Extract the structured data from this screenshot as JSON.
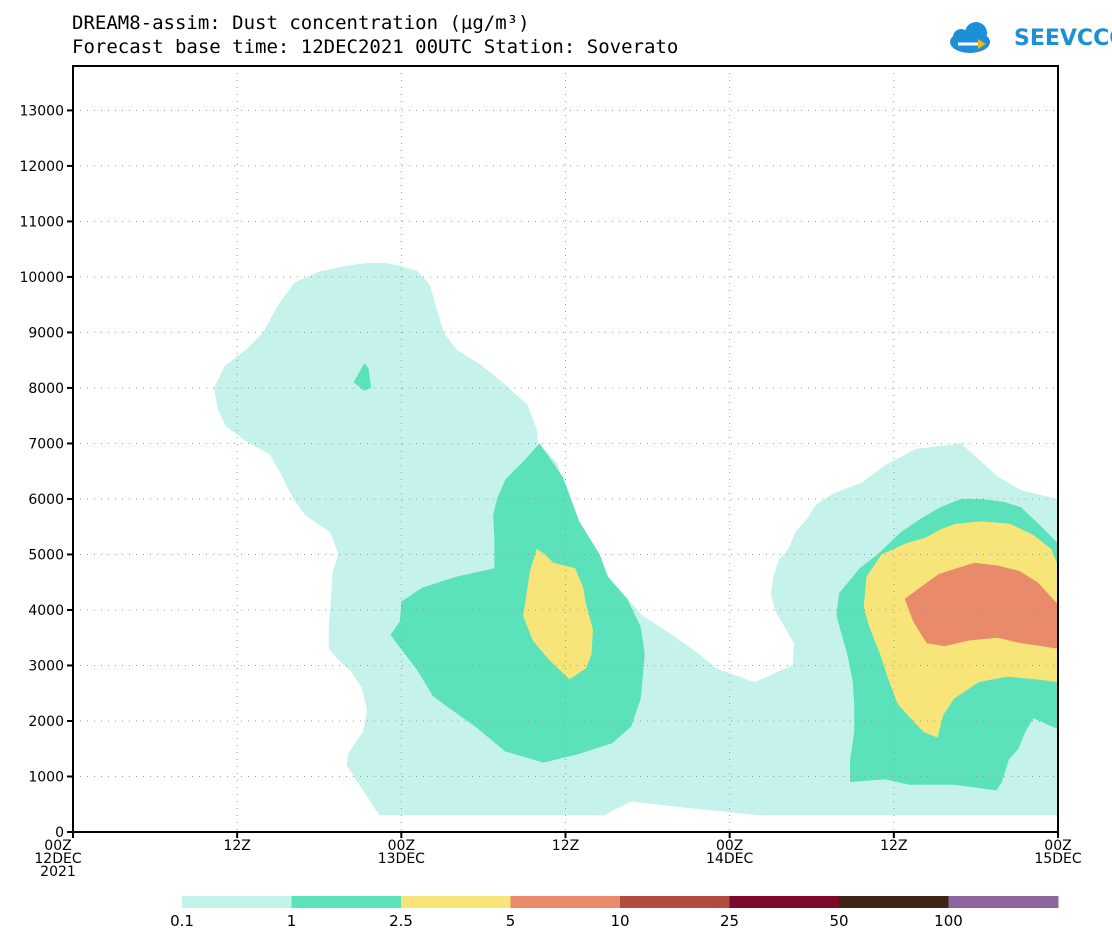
{
  "header": {
    "title_line1": "DREAM8-assim: Dust concentration (µg/m³)",
    "title_line2": "Forecast base time: 12DEC2021 00UTC  Station: Soverato",
    "logo_text": "SEEVCCC"
  },
  "colors": {
    "levels": [
      "#c5f2ea",
      "#5ce2bb",
      "#f7e57a",
      "#e98a6a",
      "#b24b40",
      "#7d0a2a",
      "#3e2415",
      "#9066a0"
    ],
    "logo": "#1c8fd6",
    "logo_arrow": "#f3b31b"
  },
  "chart_data": {
    "type": "heatmap",
    "title": "DREAM8-assim: Dust concentration (µg/m³)",
    "subtitle": "Forecast base time: 12DEC2021 00UTC  Station: Soverato",
    "x_unit": "hours since 12DEC2021 00Z",
    "xlim": [
      0,
      72
    ],
    "ylim": [
      0,
      13800
    ],
    "y_ticks": [
      0,
      1000,
      2000,
      3000,
      4000,
      5000,
      6000,
      7000,
      8000,
      9000,
      10000,
      11000,
      12000,
      13000
    ],
    "x_ticks": [
      {
        "x": 0,
        "label": [
          "00Z",
          "12DEC",
          "2021"
        ]
      },
      {
        "x": 12,
        "label": [
          "12Z"
        ]
      },
      {
        "x": 24,
        "label": [
          "00Z",
          "13DEC"
        ]
      },
      {
        "x": 36,
        "label": [
          "12Z"
        ]
      },
      {
        "x": 48,
        "label": [
          "00Z",
          "14DEC"
        ]
      },
      {
        "x": 60,
        "label": [
          "12Z"
        ]
      },
      {
        "x": 72,
        "label": [
          "00Z",
          "15DEC"
        ]
      }
    ],
    "grid": true,
    "legend": {
      "placement": "bottom",
      "thresholds": [
        "0.1",
        "1",
        "2.5",
        "5",
        "10",
        "25",
        "50",
        "100"
      ]
    },
    "contours": [
      {
        "level": 0,
        "polygon": [
          [
            22.4,
            300
          ],
          [
            27.1,
            300
          ],
          [
            30.3,
            300
          ],
          [
            38.8,
            300
          ],
          [
            40.8,
            550
          ],
          [
            44.3,
            450
          ],
          [
            50.2,
            300
          ],
          [
            72,
            300
          ],
          [
            72,
            6000
          ],
          [
            69.4,
            6150
          ],
          [
            67.6,
            6400
          ],
          [
            66.5,
            6650
          ],
          [
            64.9,
            7000
          ],
          [
            61.6,
            6900
          ],
          [
            59.3,
            6600
          ],
          [
            57.7,
            6300
          ],
          [
            55.6,
            6100
          ],
          [
            54.3,
            5900
          ],
          [
            53.7,
            5650
          ],
          [
            52.8,
            5400
          ],
          [
            52.3,
            5100
          ],
          [
            51.6,
            4900
          ],
          [
            51.2,
            4600
          ],
          [
            51.0,
            4300
          ],
          [
            51.3,
            4000
          ],
          [
            52.0,
            3700
          ],
          [
            52.7,
            3400
          ],
          [
            52.6,
            3000
          ],
          [
            51.2,
            2850
          ],
          [
            50.8,
            2800
          ],
          [
            49.8,
            2700
          ],
          [
            47.0,
            2950
          ],
          [
            45.8,
            3200
          ],
          [
            43.5,
            3600
          ],
          [
            41.6,
            3900
          ],
          [
            40.2,
            4300
          ],
          [
            39.3,
            4550
          ],
          [
            38.6,
            4800
          ],
          [
            38.0,
            5100
          ],
          [
            37.1,
            5350
          ],
          [
            36.5,
            5550
          ],
          [
            36.1,
            5850
          ],
          [
            35.8,
            6150
          ],
          [
            35.4,
            6650
          ],
          [
            34.0,
            7000
          ],
          [
            33.9,
            7250
          ],
          [
            33.2,
            7700
          ],
          [
            31.4,
            8100
          ],
          [
            29.9,
            8400
          ],
          [
            28.0,
            8700
          ],
          [
            27.1,
            9000
          ],
          [
            26.5,
            9500
          ],
          [
            26.1,
            9850
          ],
          [
            25.2,
            10100
          ],
          [
            23.9,
            10200
          ],
          [
            22.9,
            10250
          ],
          [
            21.4,
            10250
          ],
          [
            20.0,
            10200
          ],
          [
            18.0,
            10100
          ],
          [
            16.2,
            9900
          ],
          [
            15.0,
            9500
          ],
          [
            13.9,
            9000
          ],
          [
            12.7,
            8700
          ],
          [
            11.1,
            8400
          ],
          [
            10.3,
            8000
          ],
          [
            10.6,
            7600
          ],
          [
            11.2,
            7300
          ],
          [
            12.9,
            7000
          ],
          [
            14.4,
            6800
          ],
          [
            15.3,
            6400
          ],
          [
            16.1,
            6000
          ],
          [
            17.0,
            5700
          ],
          [
            18.8,
            5400
          ],
          [
            19.4,
            5000
          ],
          [
            19.0,
            4700
          ],
          [
            18.9,
            4400
          ],
          [
            18.8,
            4000
          ],
          [
            18.7,
            3700
          ],
          [
            18.7,
            3300
          ],
          [
            19.4,
            3100
          ],
          [
            20.3,
            2900
          ],
          [
            21.1,
            2600
          ],
          [
            21.5,
            2200
          ],
          [
            21.2,
            1800
          ],
          [
            20.6,
            1600
          ],
          [
            20.1,
            1400
          ],
          [
            20.0,
            1200
          ]
        ]
      },
      {
        "level": 1,
        "polygon": [
          [
            20.5,
            8100
          ],
          [
            21.3,
            8450
          ],
          [
            21.6,
            8350
          ],
          [
            21.8,
            8000
          ],
          [
            21.3,
            7950
          ]
        ]
      },
      {
        "level": 1,
        "polygon": [
          [
            34.4,
            1250
          ],
          [
            36.9,
            1400
          ],
          [
            39.4,
            1600
          ],
          [
            40.8,
            1900
          ],
          [
            41.5,
            2400
          ],
          [
            41.8,
            3200
          ],
          [
            41.5,
            3700
          ],
          [
            40.5,
            4200
          ],
          [
            39.1,
            4600
          ],
          [
            38.5,
            5000
          ],
          [
            37.0,
            5600
          ],
          [
            35.8,
            6400
          ],
          [
            34.1,
            7000
          ],
          [
            33.0,
            6700
          ],
          [
            31.6,
            6350
          ],
          [
            31.0,
            6000
          ],
          [
            30.7,
            5700
          ],
          [
            30.8,
            5300
          ],
          [
            30.8,
            4750
          ],
          [
            28.0,
            4600
          ],
          [
            25.5,
            4400
          ],
          [
            24.0,
            4150
          ],
          [
            23.9,
            3800
          ],
          [
            23.2,
            3550
          ],
          [
            25.2,
            2900
          ],
          [
            26.3,
            2450
          ],
          [
            27.4,
            2250
          ],
          [
            29.4,
            1900
          ],
          [
            31.6,
            1450
          ]
        ]
      },
      {
        "level": 1,
        "polygon": [
          [
            56.8,
            900
          ],
          [
            59.4,
            950
          ],
          [
            61.1,
            850
          ],
          [
            64.4,
            850
          ],
          [
            67.5,
            750
          ],
          [
            67.9,
            900
          ],
          [
            68.4,
            1300
          ],
          [
            69.1,
            1500
          ],
          [
            69.6,
            1800
          ],
          [
            70.2,
            2050
          ],
          [
            72,
            1850
          ],
          [
            72,
            5200
          ],
          [
            70.8,
            5500
          ],
          [
            69.3,
            5850
          ],
          [
            68.0,
            5950
          ],
          [
            66.4,
            6000
          ],
          [
            64.9,
            6000
          ],
          [
            63.4,
            5850
          ],
          [
            62.0,
            5650
          ],
          [
            60.5,
            5400
          ],
          [
            58.8,
            5000
          ],
          [
            57.5,
            4750
          ],
          [
            56.0,
            4300
          ],
          [
            55.8,
            3900
          ],
          [
            56.2,
            3550
          ],
          [
            56.6,
            3200
          ],
          [
            57.0,
            2700
          ],
          [
            57.1,
            2300
          ],
          [
            57.1,
            1800
          ],
          [
            56.8,
            1300
          ]
        ]
      },
      {
        "level": 2,
        "polygon": [
          [
            32.9,
            3900
          ],
          [
            33.6,
            3450
          ],
          [
            34.8,
            3100
          ],
          [
            36.3,
            2750
          ],
          [
            37.5,
            2950
          ],
          [
            37.9,
            3200
          ],
          [
            38.0,
            3650
          ],
          [
            37.5,
            4100
          ],
          [
            37.3,
            4400
          ],
          [
            36.7,
            4750
          ],
          [
            35.1,
            4850
          ],
          [
            34.5,
            5000
          ],
          [
            33.9,
            5100
          ],
          [
            33.4,
            4700
          ],
          [
            33.1,
            4200
          ]
        ]
      },
      {
        "level": 2,
        "polygon": [
          [
            57.8,
            4050
          ],
          [
            58.2,
            3700
          ],
          [
            59.0,
            3200
          ],
          [
            59.6,
            2750
          ],
          [
            60.3,
            2300
          ],
          [
            61.4,
            2000
          ],
          [
            62.2,
            1800
          ],
          [
            63.2,
            1700
          ],
          [
            63.6,
            2100
          ],
          [
            64.4,
            2400
          ],
          [
            66.2,
            2700
          ],
          [
            68.3,
            2800
          ],
          [
            70.4,
            2750
          ],
          [
            72,
            2700
          ],
          [
            72,
            4800
          ],
          [
            71.5,
            5100
          ],
          [
            70.2,
            5350
          ],
          [
            68.5,
            5550
          ],
          [
            66.4,
            5600
          ],
          [
            64.5,
            5550
          ],
          [
            63.4,
            5450
          ],
          [
            62.3,
            5300
          ],
          [
            60.9,
            5200
          ],
          [
            59.1,
            5000
          ],
          [
            58.0,
            4600
          ]
        ]
      },
      {
        "level": 3,
        "polygon": [
          [
            60.8,
            4200
          ],
          [
            61.4,
            3800
          ],
          [
            62.4,
            3400
          ],
          [
            63.7,
            3350
          ],
          [
            65.5,
            3450
          ],
          [
            67.6,
            3500
          ],
          [
            69.3,
            3400
          ],
          [
            70.8,
            3350
          ],
          [
            72,
            3300
          ],
          [
            72,
            4100
          ],
          [
            70.5,
            4500
          ],
          [
            69.2,
            4700
          ],
          [
            67.6,
            4800
          ],
          [
            65.9,
            4850
          ],
          [
            64.6,
            4750
          ],
          [
            63.3,
            4650
          ],
          [
            61.9,
            4400
          ]
        ]
      }
    ]
  }
}
